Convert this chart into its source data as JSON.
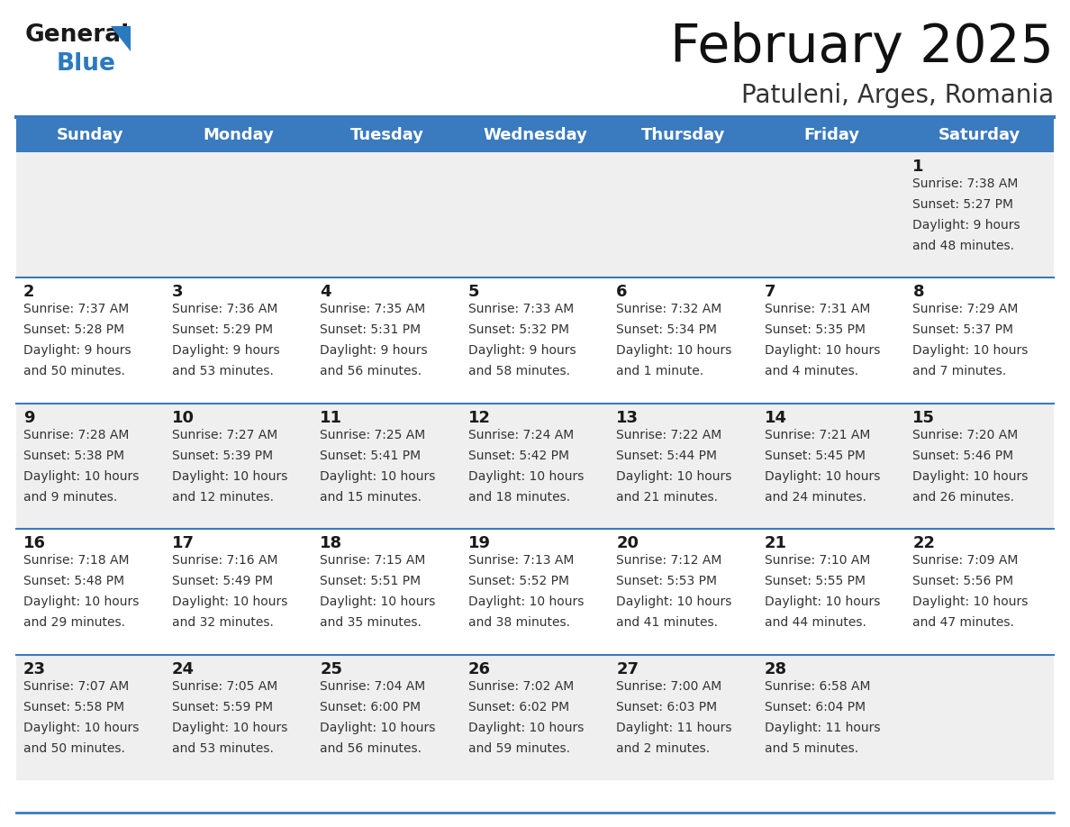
{
  "title": "February 2025",
  "subtitle": "Patuleni, Arges, Romania",
  "header_bg": "#3a7abf",
  "header_text": "#ffffff",
  "day_names": [
    "Sunday",
    "Monday",
    "Tuesday",
    "Wednesday",
    "Thursday",
    "Friday",
    "Saturday"
  ],
  "row_bg_odd": "#efefef",
  "row_bg_even": "#ffffff",
  "cell_text_color": "#333333",
  "date_color": "#1a1a1a",
  "grid_line_color": "#3a7abf",
  "logo_general_color": "#1a1a1a",
  "logo_blue_color": "#2a7abf",
  "logo_triangle_color": "#2a7abf",
  "title_fontsize": 42,
  "subtitle_fontsize": 20,
  "header_fontsize": 13,
  "day_num_fontsize": 13,
  "cell_fontsize": 10,
  "weeks": [
    [
      {
        "day": null,
        "text": ""
      },
      {
        "day": null,
        "text": ""
      },
      {
        "day": null,
        "text": ""
      },
      {
        "day": null,
        "text": ""
      },
      {
        "day": null,
        "text": ""
      },
      {
        "day": null,
        "text": ""
      },
      {
        "day": 1,
        "text": "Sunrise: 7:38 AM\nSunset: 5:27 PM\nDaylight: 9 hours\nand 48 minutes."
      }
    ],
    [
      {
        "day": 2,
        "text": "Sunrise: 7:37 AM\nSunset: 5:28 PM\nDaylight: 9 hours\nand 50 minutes."
      },
      {
        "day": 3,
        "text": "Sunrise: 7:36 AM\nSunset: 5:29 PM\nDaylight: 9 hours\nand 53 minutes."
      },
      {
        "day": 4,
        "text": "Sunrise: 7:35 AM\nSunset: 5:31 PM\nDaylight: 9 hours\nand 56 minutes."
      },
      {
        "day": 5,
        "text": "Sunrise: 7:33 AM\nSunset: 5:32 PM\nDaylight: 9 hours\nand 58 minutes."
      },
      {
        "day": 6,
        "text": "Sunrise: 7:32 AM\nSunset: 5:34 PM\nDaylight: 10 hours\nand 1 minute."
      },
      {
        "day": 7,
        "text": "Sunrise: 7:31 AM\nSunset: 5:35 PM\nDaylight: 10 hours\nand 4 minutes."
      },
      {
        "day": 8,
        "text": "Sunrise: 7:29 AM\nSunset: 5:37 PM\nDaylight: 10 hours\nand 7 minutes."
      }
    ],
    [
      {
        "day": 9,
        "text": "Sunrise: 7:28 AM\nSunset: 5:38 PM\nDaylight: 10 hours\nand 9 minutes."
      },
      {
        "day": 10,
        "text": "Sunrise: 7:27 AM\nSunset: 5:39 PM\nDaylight: 10 hours\nand 12 minutes."
      },
      {
        "day": 11,
        "text": "Sunrise: 7:25 AM\nSunset: 5:41 PM\nDaylight: 10 hours\nand 15 minutes."
      },
      {
        "day": 12,
        "text": "Sunrise: 7:24 AM\nSunset: 5:42 PM\nDaylight: 10 hours\nand 18 minutes."
      },
      {
        "day": 13,
        "text": "Sunrise: 7:22 AM\nSunset: 5:44 PM\nDaylight: 10 hours\nand 21 minutes."
      },
      {
        "day": 14,
        "text": "Sunrise: 7:21 AM\nSunset: 5:45 PM\nDaylight: 10 hours\nand 24 minutes."
      },
      {
        "day": 15,
        "text": "Sunrise: 7:20 AM\nSunset: 5:46 PM\nDaylight: 10 hours\nand 26 minutes."
      }
    ],
    [
      {
        "day": 16,
        "text": "Sunrise: 7:18 AM\nSunset: 5:48 PM\nDaylight: 10 hours\nand 29 minutes."
      },
      {
        "day": 17,
        "text": "Sunrise: 7:16 AM\nSunset: 5:49 PM\nDaylight: 10 hours\nand 32 minutes."
      },
      {
        "day": 18,
        "text": "Sunrise: 7:15 AM\nSunset: 5:51 PM\nDaylight: 10 hours\nand 35 minutes."
      },
      {
        "day": 19,
        "text": "Sunrise: 7:13 AM\nSunset: 5:52 PM\nDaylight: 10 hours\nand 38 minutes."
      },
      {
        "day": 20,
        "text": "Sunrise: 7:12 AM\nSunset: 5:53 PM\nDaylight: 10 hours\nand 41 minutes."
      },
      {
        "day": 21,
        "text": "Sunrise: 7:10 AM\nSunset: 5:55 PM\nDaylight: 10 hours\nand 44 minutes."
      },
      {
        "day": 22,
        "text": "Sunrise: 7:09 AM\nSunset: 5:56 PM\nDaylight: 10 hours\nand 47 minutes."
      }
    ],
    [
      {
        "day": 23,
        "text": "Sunrise: 7:07 AM\nSunset: 5:58 PM\nDaylight: 10 hours\nand 50 minutes."
      },
      {
        "day": 24,
        "text": "Sunrise: 7:05 AM\nSunset: 5:59 PM\nDaylight: 10 hours\nand 53 minutes."
      },
      {
        "day": 25,
        "text": "Sunrise: 7:04 AM\nSunset: 6:00 PM\nDaylight: 10 hours\nand 56 minutes."
      },
      {
        "day": 26,
        "text": "Sunrise: 7:02 AM\nSunset: 6:02 PM\nDaylight: 10 hours\nand 59 minutes."
      },
      {
        "day": 27,
        "text": "Sunrise: 7:00 AM\nSunset: 6:03 PM\nDaylight: 11 hours\nand 2 minutes."
      },
      {
        "day": 28,
        "text": "Sunrise: 6:58 AM\nSunset: 6:04 PM\nDaylight: 11 hours\nand 5 minutes."
      },
      {
        "day": null,
        "text": ""
      }
    ]
  ]
}
